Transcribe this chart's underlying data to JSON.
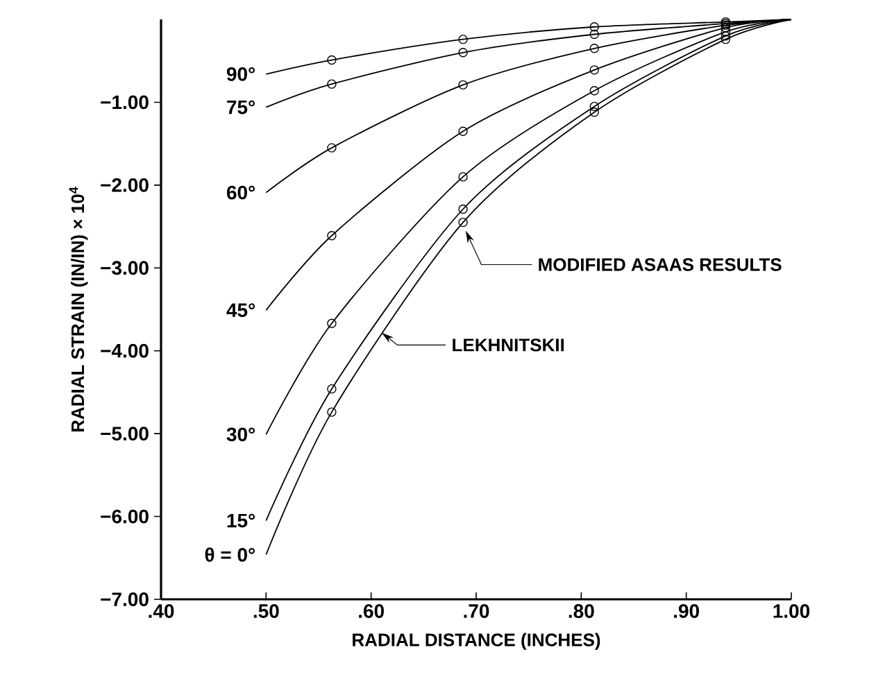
{
  "chart_data": {
    "type": "line",
    "xlabel": "RADIAL DISTANCE (INCHES)",
    "ylabel": "RADIAL STRAIN (IN/IN) × 10$^{4}$",
    "xlim": [
      0.4,
      1.0
    ],
    "ylim": [
      -7,
      0
    ],
    "xticks": [
      {
        "value": 0.4,
        "label": ".40"
      },
      {
        "value": 0.5,
        "label": ".50"
      },
      {
        "value": 0.6,
        "label": ".60"
      },
      {
        "value": 0.7,
        "label": ".70"
      },
      {
        "value": 0.8,
        "label": ".80"
      },
      {
        "value": 0.9,
        "label": ".90"
      },
      {
        "value": 1.0,
        "label": "1.00"
      }
    ],
    "yticks": [
      {
        "value": -1,
        "label": "−1.00"
      },
      {
        "value": -2,
        "label": "−2.00"
      },
      {
        "value": -3,
        "label": "−3.00"
      },
      {
        "value": -4,
        "label": "−4.00"
      },
      {
        "value": -5,
        "label": "−5.00"
      },
      {
        "value": -6,
        "label": "−6.00"
      },
      {
        "value": -7,
        "label": "−7.00"
      }
    ],
    "series": [
      {
        "name": "90°",
        "color": "#000000",
        "marker": "none",
        "x": [
          0.5,
          0.5625,
          0.6875,
          0.8125,
          0.9375,
          1.0
        ],
        "values": [
          -0.66,
          -0.49,
          -0.24,
          -0.09,
          -0.03,
          0
        ]
      },
      {
        "name": "75°",
        "color": "#000000",
        "marker": "none",
        "x": [
          0.5,
          0.5625,
          0.6875,
          0.8125,
          0.9375,
          1.0
        ],
        "values": [
          -1.06,
          -0.78,
          -0.4,
          -0.18,
          -0.05,
          0
        ]
      },
      {
        "name": "60°",
        "color": "#000000",
        "marker": "none",
        "x": [
          0.5,
          0.5625,
          0.6875,
          0.8125,
          0.9375,
          1.0
        ],
        "values": [
          -2.09,
          -1.55,
          -0.79,
          -0.35,
          -0.07,
          0
        ]
      },
      {
        "name": "45°",
        "color": "#000000",
        "marker": "none",
        "x": [
          0.5,
          0.5625,
          0.6875,
          0.8125,
          0.9375,
          1.0
        ],
        "values": [
          -3.51,
          -2.61,
          -1.35,
          -0.61,
          -0.1,
          0
        ]
      },
      {
        "name": "30°",
        "color": "#000000",
        "marker": "none",
        "x": [
          0.5,
          0.5625,
          0.6875,
          0.8125,
          0.9375,
          1.0
        ],
        "values": [
          -5.01,
          -3.67,
          -1.9,
          -0.86,
          -0.15,
          0
        ]
      },
      {
        "name": "15°",
        "color": "#000000",
        "marker": "none",
        "x": [
          0.5,
          0.5625,
          0.6875,
          0.8125,
          0.9375,
          1.0
        ],
        "values": [
          -6.05,
          -4.46,
          -2.29,
          -1.05,
          -0.2,
          0
        ]
      },
      {
        "name": "θ = 0°",
        "color": "#000000",
        "marker": "none",
        "x": [
          0.5,
          0.5625,
          0.6875,
          0.8125,
          0.9375,
          1.0
        ],
        "values": [
          -6.46,
          -4.74,
          -2.45,
          -1.12,
          -0.24,
          0
        ]
      },
      {
        "type": "scatter",
        "color": "#000000",
        "marker": "circle",
        "x": [
          0.5625,
          0.6875,
          0.8125,
          0.9375
        ],
        "values": [
          -0.49,
          -0.24,
          -0.09,
          -0.03
        ]
      },
      {
        "type": "scatter",
        "color": "#000000",
        "marker": "circle",
        "x": [
          0.5625,
          0.6875,
          0.8125,
          0.9375
        ],
        "values": [
          -0.78,
          -0.4,
          -0.18,
          -0.05
        ]
      },
      {
        "type": "scatter",
        "color": "#000000",
        "marker": "circle",
        "x": [
          0.5625,
          0.6875,
          0.8125,
          0.9375
        ],
        "values": [
          -1.55,
          -0.79,
          -0.35,
          -0.07
        ]
      },
      {
        "type": "scatter",
        "color": "#000000",
        "marker": "circle",
        "x": [
          0.5625,
          0.6875,
          0.8125,
          0.9375
        ],
        "values": [
          -2.61,
          -1.35,
          -0.61,
          -0.1
        ]
      },
      {
        "type": "scatter",
        "color": "#000000",
        "marker": "circle",
        "x": [
          0.5625,
          0.6875,
          0.8125,
          0.9375
        ],
        "values": [
          -3.67,
          -1.9,
          -0.86,
          -0.15
        ]
      },
      {
        "type": "scatter",
        "color": "#000000",
        "marker": "circle",
        "x": [
          0.5625,
          0.6875,
          0.8125,
          0.9375
        ],
        "values": [
          -4.46,
          -2.29,
          -1.05,
          -0.2
        ]
      },
      {
        "type": "scatter",
        "color": "#000000",
        "marker": "circle",
        "x": [
          0.5625,
          0.6875,
          0.8125,
          0.9375
        ],
        "values": [
          -4.74,
          -2.45,
          -1.12,
          -0.24
        ]
      }
    ],
    "annotations": [
      {
        "text": "LEKHNITSKII",
        "x": 0.61,
        "y": -3.78
      },
      {
        "text": "MODIFIED ASAAS RESULTS",
        "x": 0.69,
        "y": -2.55
      }
    ]
  }
}
